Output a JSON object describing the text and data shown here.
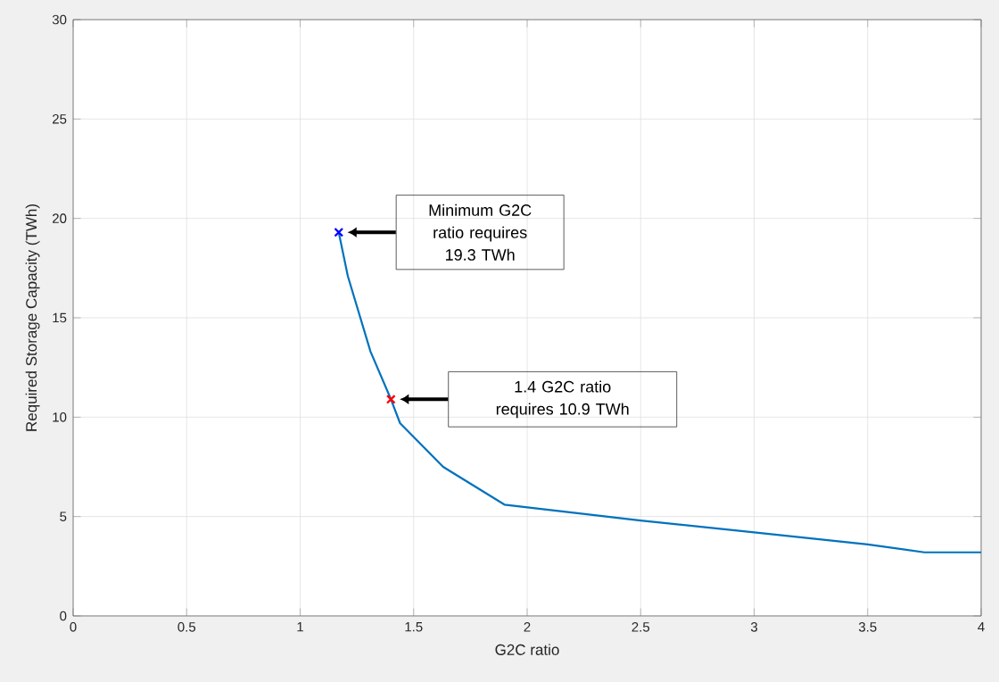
{
  "chart_data": {
    "type": "line",
    "xlabel": "G2C ratio",
    "ylabel": "Required Storage Capacity (TWh)",
    "xlim": [
      0,
      4
    ],
    "ylim": [
      0,
      30
    ],
    "xticks": [
      0,
      0.5,
      1,
      1.5,
      2,
      2.5,
      3,
      3.5,
      4
    ],
    "yticks": [
      0,
      5,
      10,
      15,
      20,
      25,
      30
    ],
    "grid": true,
    "line_style": "solid",
    "series": [
      {
        "color": "#0072bd",
        "marker": "none",
        "x": [
          1.17,
          1.21,
          1.31,
          1.4,
          1.44,
          1.63,
          1.9,
          2.5,
          3,
          3.5,
          3.75,
          4
        ],
        "values": [
          19.3,
          17.1,
          13.3,
          10.9,
          9.7,
          7.5,
          5.6,
          4.8,
          4.2,
          3.6,
          3.2,
          3.2
        ]
      },
      {
        "type": "scatter",
        "color": "#0000ff",
        "marker": "cross",
        "x": [
          1.17
        ],
        "values": [
          19.3
        ]
      },
      {
        "type": "scatter",
        "color": "#ff0000",
        "marker": "cross",
        "x": [
          1.4
        ],
        "values": [
          10.9
        ]
      }
    ],
    "annotations": [
      "Minimum G2C ratio requires 19.3 TWh",
      "1.4 G2C ratio requires 10.9 TWh"
    ]
  }
}
